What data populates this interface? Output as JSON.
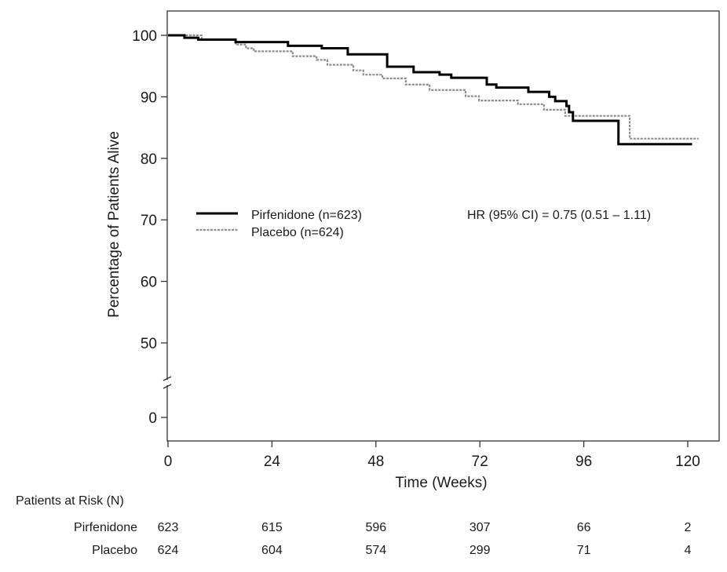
{
  "chart_data": {
    "type": "line",
    "subtype": "kaplan-meier step",
    "xlabel": "Time (Weeks)",
    "ylabel": "Percentage of Patients Alive",
    "xlim": [
      0,
      127
    ],
    "ylim": [
      0,
      104
    ],
    "y_axis_break_between": [
      0,
      50
    ],
    "x_ticks": [
      "0",
      "24",
      "48",
      "72",
      "96",
      "120"
    ],
    "y_ticks": [
      "0",
      "50",
      "60",
      "70",
      "80",
      "90",
      "100"
    ],
    "grid": false,
    "legend_position": "center-left",
    "annotation": "HR (95% CI) = 0.75 (0.51 – 1.11)",
    "series": [
      {
        "name": "Pirfenidone (n=623)",
        "style": "solid",
        "color": "#000000",
        "steps": [
          [
            0,
            100
          ],
          [
            3.8,
            99.6
          ],
          [
            7,
            99.3
          ],
          [
            15.6,
            98.9
          ],
          [
            27.7,
            98.3
          ],
          [
            35.5,
            97.9
          ],
          [
            41.5,
            96.9
          ],
          [
            50.6,
            94.9
          ],
          [
            56.7,
            94.0
          ],
          [
            62.7,
            93.6
          ],
          [
            65.4,
            93.1
          ],
          [
            73.6,
            92.0
          ],
          [
            75.8,
            91.5
          ],
          [
            83.2,
            90.8
          ],
          [
            88,
            90.0
          ],
          [
            89.4,
            89.3
          ],
          [
            92,
            88.5
          ],
          [
            92.6,
            87.5
          ],
          [
            93.5,
            86.1
          ],
          [
            104,
            82.3
          ],
          [
            121,
            82.3
          ]
        ]
      },
      {
        "name": "Placebo (n=624)",
        "style": "dashed",
        "color": "#8c8c8c",
        "steps": [
          [
            0,
            100
          ],
          [
            7.8,
            99.3
          ],
          [
            15.6,
            98.5
          ],
          [
            18,
            97.9
          ],
          [
            19.8,
            97.4
          ],
          [
            28.8,
            96.6
          ],
          [
            34.3,
            96.0
          ],
          [
            36.8,
            95.2
          ],
          [
            42.8,
            94.3
          ],
          [
            45.1,
            93.6
          ],
          [
            49.5,
            93.0
          ],
          [
            54.9,
            92.0
          ],
          [
            60.4,
            91.1
          ],
          [
            68.7,
            90.1
          ],
          [
            71.8,
            89.4
          ],
          [
            80.8,
            88.8
          ],
          [
            86.8,
            87.9
          ],
          [
            91.7,
            86.9
          ],
          [
            106.6,
            83.2
          ],
          [
            122.5,
            83.2
          ]
        ]
      }
    ],
    "risk_table": {
      "title": "Patients at Risk (N)",
      "timepoints": [
        0,
        24,
        48,
        72,
        96,
        120
      ],
      "rows": [
        {
          "label": "Pirfenidone",
          "values": [
            "623",
            "615",
            "596",
            "307",
            "66",
            "2"
          ]
        },
        {
          "label": "Placebo",
          "values": [
            "624",
            "604",
            "574",
            "299",
            "71",
            "4"
          ]
        }
      ]
    }
  }
}
